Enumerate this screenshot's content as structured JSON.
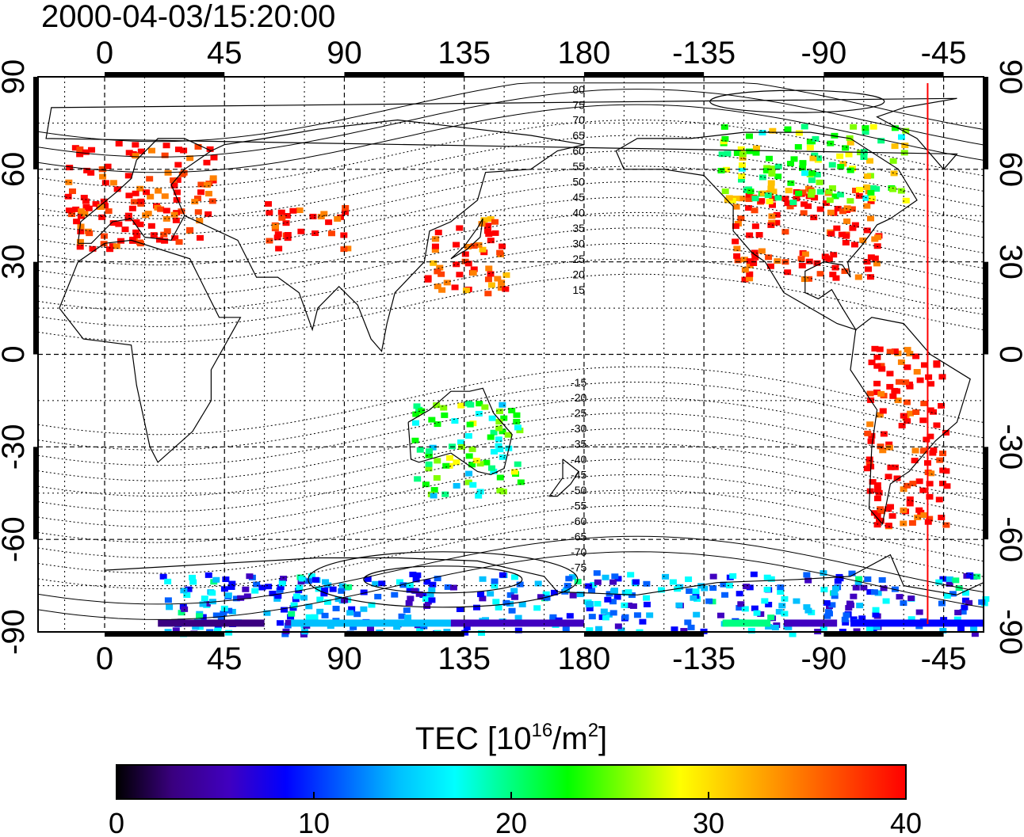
{
  "timestamp": "2000-04-03/15:20:00",
  "colors": {
    "red_line": "#ff0000",
    "colorbar": [
      "#000000",
      "#3a0080",
      "#4000c0",
      "#0000ff",
      "#0060ff",
      "#00c0ff",
      "#00ffff",
      "#00ff80",
      "#00ff00",
      "#80ff00",
      "#ffff00",
      "#ffc000",
      "#ff8000",
      "#ff4000",
      "#ff0000"
    ]
  },
  "map": {
    "lon_ticks_top": [
      "0",
      "45",
      "90",
      "135",
      "180",
      "-135",
      "-90",
      "-45"
    ],
    "lon_ticks_bottom": [
      "0",
      "45",
      "90",
      "135",
      "180",
      "-135",
      "-90",
      "-45"
    ],
    "lat_ticks_left": [
      "90",
      "60",
      "30",
      "0",
      "-30",
      "-60",
      "-90"
    ],
    "lat_ticks_right": [
      "90",
      "60",
      "30",
      "0",
      "-30",
      "-60",
      "-90"
    ],
    "contour_labels": [
      "80",
      "75",
      "70",
      "65",
      "60",
      "55",
      "50",
      "45",
      "40",
      "35",
      "30",
      "25",
      "20",
      "15",
      "-15",
      "-20",
      "-25",
      "-30",
      "-35",
      "-40",
      "-45",
      "-50",
      "-55",
      "-60",
      "-65",
      "-70",
      "-75"
    ],
    "red_line_lon": -51
  },
  "colorbar": {
    "title_main": "TEC  [10",
    "title_sup1": "16",
    "title_mid": "/m",
    "title_sup2": "2",
    "title_end": "]",
    "range": [
      0,
      40
    ],
    "tick_labels": [
      "0",
      "10",
      "20",
      "30",
      "40"
    ]
  },
  "chart_data": {
    "type": "heatmap",
    "title": "2000-04-03/15:20:00",
    "value_label": "TEC [10^16/m^2]",
    "value_range": [
      0,
      40
    ],
    "x_range": [
      -25,
      330
    ],
    "y_range": [
      -90,
      90
    ],
    "regions": [
      {
        "name": "Europe",
        "lon": [
          -15,
          40
        ],
        "lat": [
          35,
          70
        ],
        "tec": 40
      },
      {
        "name": "Central Asia",
        "lon": [
          60,
          90
        ],
        "lat": [
          35,
          50
        ],
        "tec": 40
      },
      {
        "name": "Japan / East China",
        "lon": [
          120,
          150
        ],
        "lat": [
          20,
          45
        ],
        "tec": 38
      },
      {
        "name": "North America",
        "lon": [
          -125,
          -70
        ],
        "lat": [
          25,
          55
        ],
        "tec": 40
      },
      {
        "name": "Canada",
        "lon": [
          -130,
          -60
        ],
        "lat": [
          50,
          75
        ],
        "tec": 25
      },
      {
        "name": "South America",
        "lon": [
          -75,
          -45
        ],
        "lat": [
          -55,
          5
        ],
        "tec": 40
      },
      {
        "name": "Australia",
        "lon": [
          115,
          155
        ],
        "lat": [
          -45,
          -15
        ],
        "tec": 22
      },
      {
        "name": "Antarctica rim",
        "lon": [
          20,
          330
        ],
        "lat": [
          -90,
          -70
        ],
        "tec": 12
      }
    ]
  }
}
